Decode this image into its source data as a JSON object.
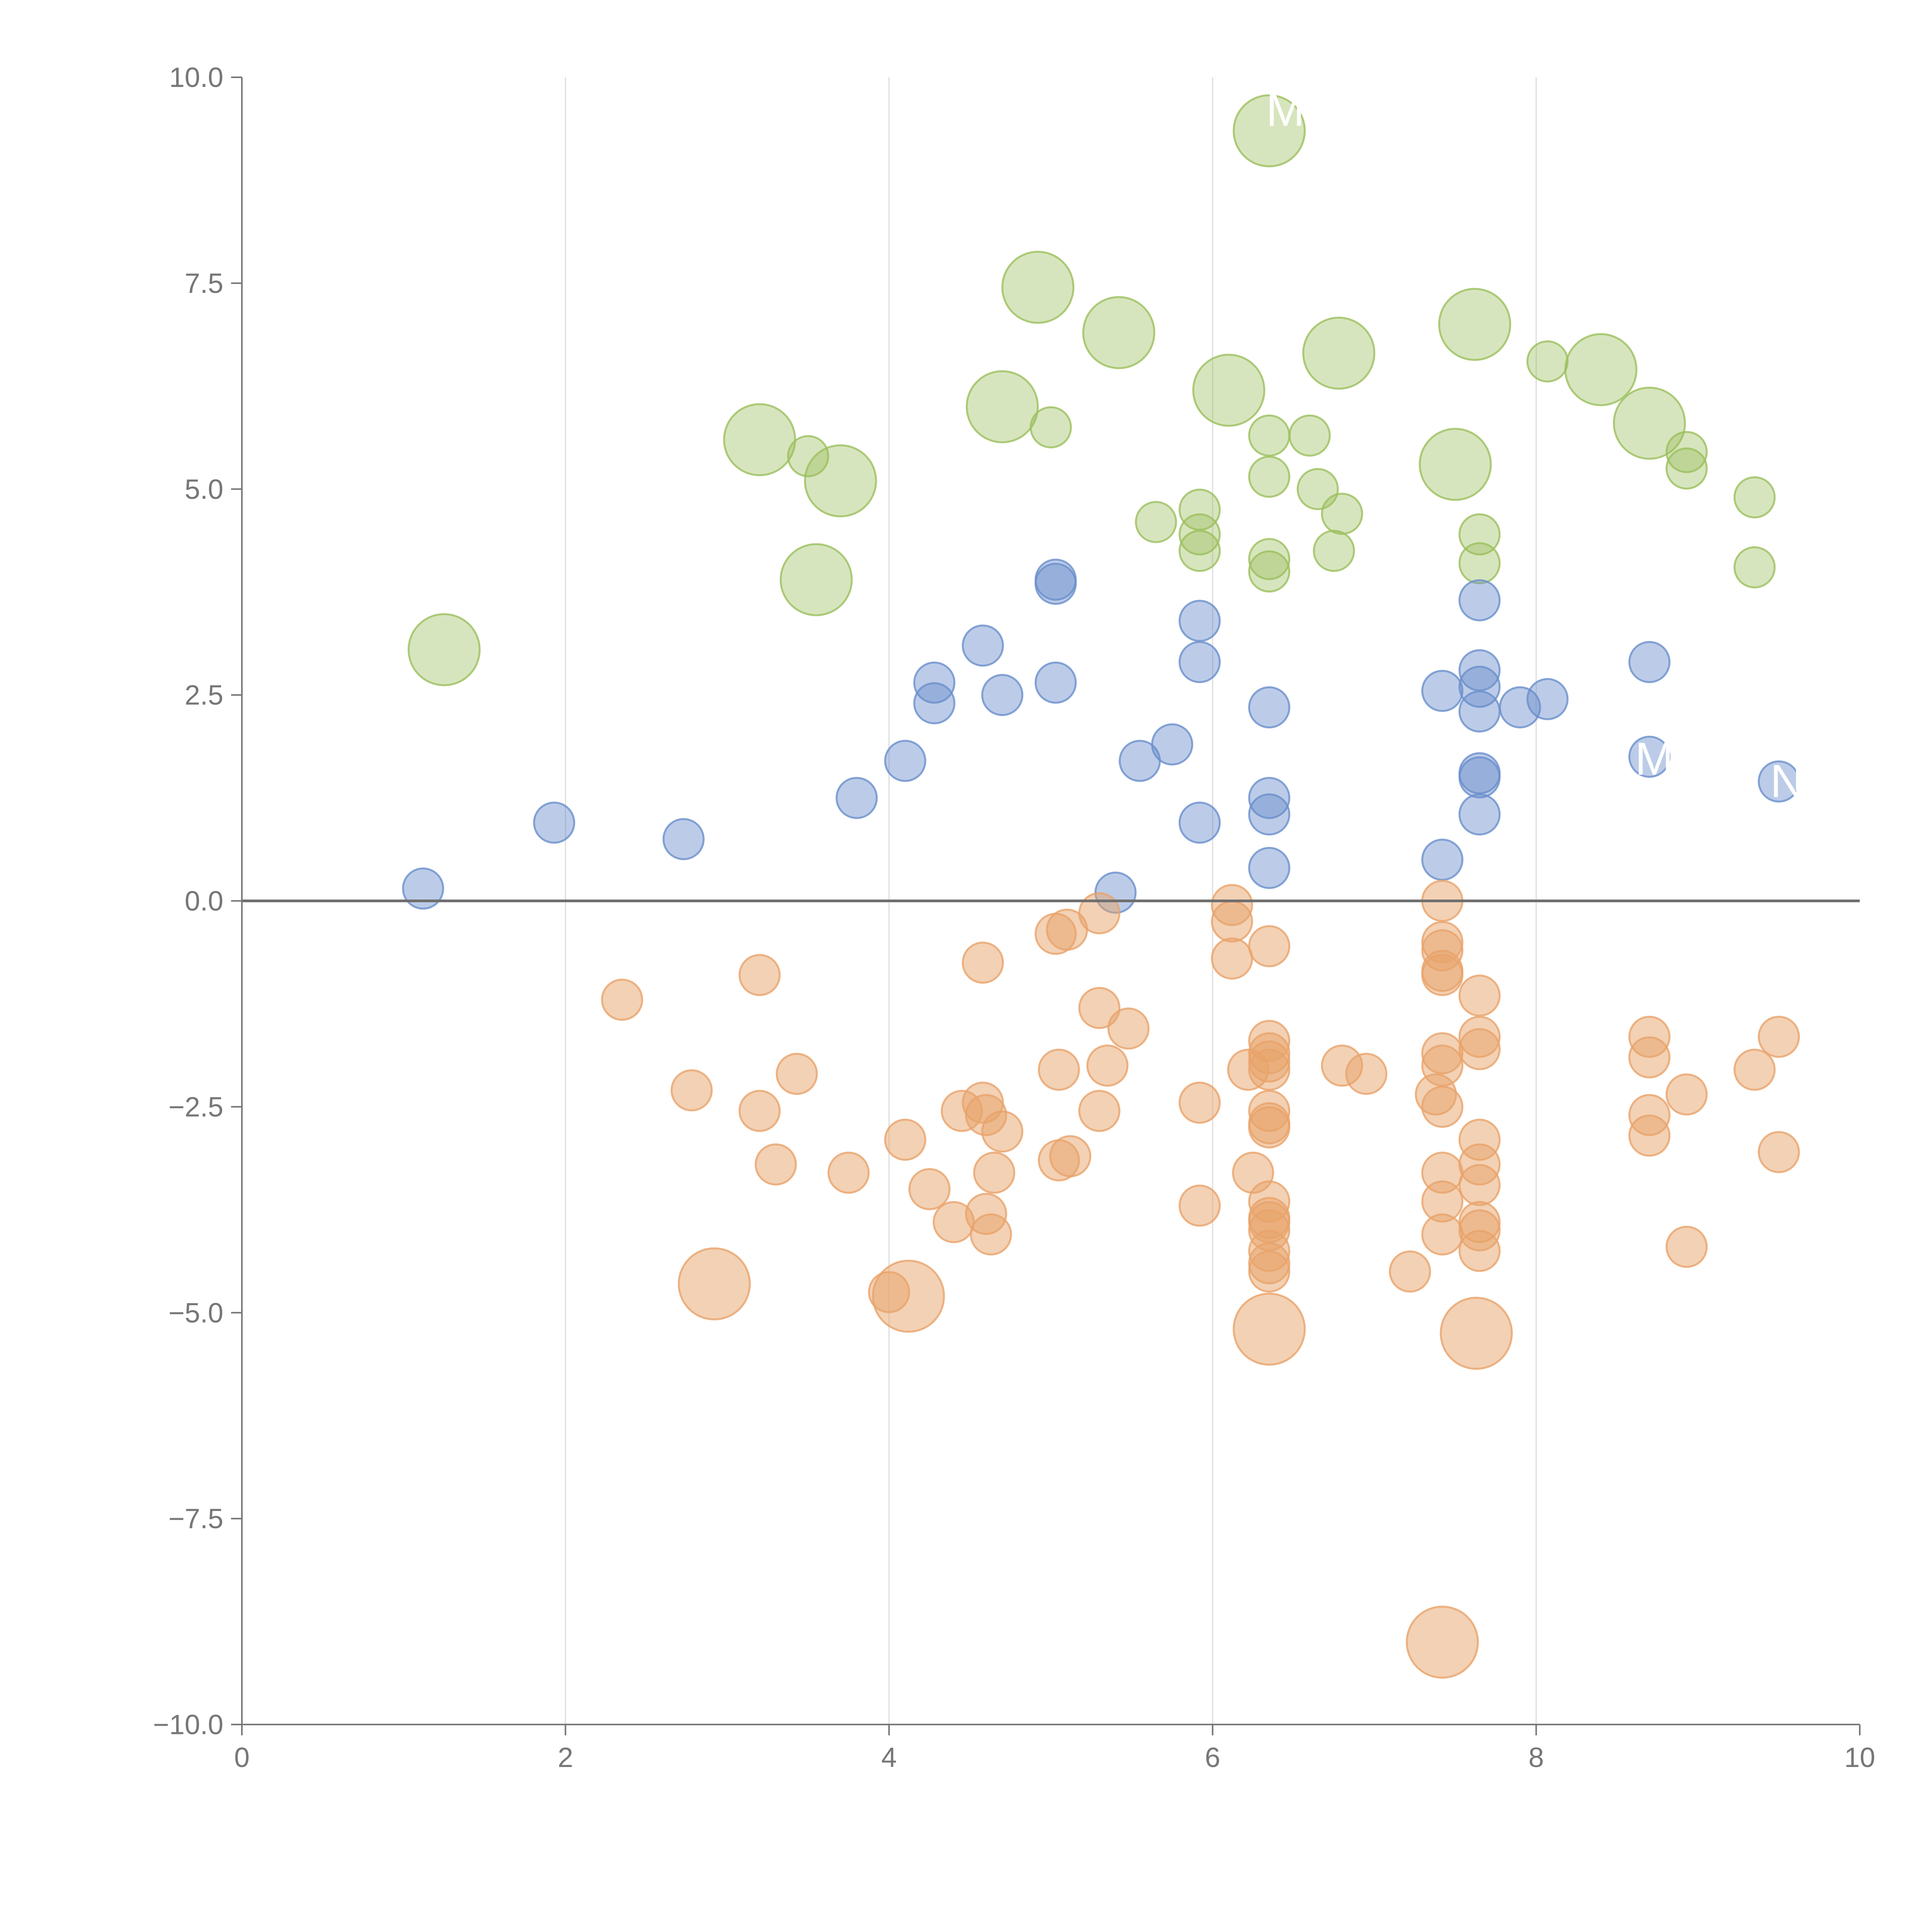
{
  "chart_data": {
    "type": "scatter",
    "variant": "bubble",
    "title": "",
    "xlabel": "",
    "ylabel": "",
    "xlim": [
      0,
      10
    ],
    "ylim": [
      -10,
      10
    ],
    "x_ticks": [
      0,
      2,
      4,
      6,
      8,
      10
    ],
    "y_ticks": [
      -10,
      -7.5,
      -5,
      -2.5,
      0,
      2.5,
      5,
      7.5,
      10
    ],
    "x_tick_labels": [
      "0",
      "2",
      "4",
      "6",
      "8",
      "10"
    ],
    "y_tick_labels": [
      "−10.0",
      "−7.5",
      "−5.0",
      "−2.5",
      "0.0",
      "2.5",
      "5.0",
      "7.5",
      "10.0"
    ],
    "vertical_grid": true,
    "zero_line": true,
    "legend": "none",
    "size_classes": {
      "small": 1,
      "large": 2
    },
    "series": [
      {
        "name": "green",
        "color": "#9bbf5c",
        "fill_opacity": 0.4,
        "points": [
          {
            "x": 1.25,
            "y": 3.05,
            "s": 2
          },
          {
            "x": 3.2,
            "y": 5.6,
            "s": 2
          },
          {
            "x": 3.5,
            "y": 5.4,
            "s": 1
          },
          {
            "x": 3.55,
            "y": 3.9,
            "s": 2
          },
          {
            "x": 3.7,
            "y": 5.1,
            "s": 2
          },
          {
            "x": 4.7,
            "y": 6.0,
            "s": 2
          },
          {
            "x": 4.92,
            "y": 7.45,
            "s": 2
          },
          {
            "x": 5.0,
            "y": 5.75,
            "s": 1
          },
          {
            "x": 5.42,
            "y": 6.9,
            "s": 2
          },
          {
            "x": 5.65,
            "y": 4.6,
            "s": 1
          },
          {
            "x": 5.92,
            "y": 4.75,
            "s": 1
          },
          {
            "x": 5.92,
            "y": 4.45,
            "s": 1
          },
          {
            "x": 5.92,
            "y": 4.25,
            "s": 1
          },
          {
            "x": 6.1,
            "y": 6.2,
            "s": 2
          },
          {
            "x": 6.35,
            "y": 9.35,
            "s": 2
          },
          {
            "x": 6.35,
            "y": 5.65,
            "s": 1
          },
          {
            "x": 6.35,
            "y": 5.15,
            "s": 1
          },
          {
            "x": 6.35,
            "y": 4.15,
            "s": 1
          },
          {
            "x": 6.35,
            "y": 4.0,
            "s": 1
          },
          {
            "x": 6.6,
            "y": 5.65,
            "s": 1
          },
          {
            "x": 6.65,
            "y": 5.0,
            "s": 1
          },
          {
            "x": 6.75,
            "y": 4.25,
            "s": 1
          },
          {
            "x": 6.78,
            "y": 6.65,
            "s": 2
          },
          {
            "x": 6.8,
            "y": 4.7,
            "s": 1
          },
          {
            "x": 7.5,
            "y": 5.3,
            "s": 2
          },
          {
            "x": 7.62,
            "y": 7.0,
            "s": 2
          },
          {
            "x": 7.65,
            "y": 4.45,
            "s": 1
          },
          {
            "x": 7.65,
            "y": 4.1,
            "s": 1
          },
          {
            "x": 8.07,
            "y": 6.55,
            "s": 1
          },
          {
            "x": 8.4,
            "y": 6.45,
            "s": 2
          },
          {
            "x": 8.7,
            "y": 5.8,
            "s": 2
          },
          {
            "x": 8.93,
            "y": 5.45,
            "s": 1
          },
          {
            "x": 8.93,
            "y": 5.25,
            "s": 1
          },
          {
            "x": 9.35,
            "y": 4.9,
            "s": 1
          },
          {
            "x": 9.35,
            "y": 4.05,
            "s": 1
          }
        ]
      },
      {
        "name": "blue",
        "color": "#6a8fcc",
        "fill_opacity": 0.45,
        "points": [
          {
            "x": 1.12,
            "y": 0.15,
            "s": 1
          },
          {
            "x": 1.93,
            "y": 0.95,
            "s": 1
          },
          {
            "x": 2.73,
            "y": 0.75,
            "s": 1
          },
          {
            "x": 3.8,
            "y": 1.25,
            "s": 1
          },
          {
            "x": 4.1,
            "y": 1.7,
            "s": 1
          },
          {
            "x": 4.28,
            "y": 2.65,
            "s": 1
          },
          {
            "x": 4.28,
            "y": 2.4,
            "s": 1
          },
          {
            "x": 4.58,
            "y": 3.1,
            "s": 1
          },
          {
            "x": 4.7,
            "y": 2.5,
            "s": 1
          },
          {
            "x": 5.03,
            "y": 3.9,
            "s": 1
          },
          {
            "x": 5.03,
            "y": 3.85,
            "s": 1
          },
          {
            "x": 5.03,
            "y": 2.65,
            "s": 1
          },
          {
            "x": 5.4,
            "y": 0.1,
            "s": 1
          },
          {
            "x": 5.55,
            "y": 1.7,
            "s": 1
          },
          {
            "x": 5.75,
            "y": 1.9,
            "s": 1
          },
          {
            "x": 5.92,
            "y": 3.4,
            "s": 1
          },
          {
            "x": 5.92,
            "y": 2.9,
            "s": 1
          },
          {
            "x": 5.92,
            "y": 0.95,
            "s": 1
          },
          {
            "x": 6.35,
            "y": 2.35,
            "s": 1
          },
          {
            "x": 6.35,
            "y": 1.25,
            "s": 1
          },
          {
            "x": 6.35,
            "y": 1.05,
            "s": 1
          },
          {
            "x": 6.35,
            "y": 0.4,
            "s": 1
          },
          {
            "x": 7.42,
            "y": 2.55,
            "s": 1
          },
          {
            "x": 7.42,
            "y": 0.5,
            "s": 1
          },
          {
            "x": 7.65,
            "y": 3.65,
            "s": 1
          },
          {
            "x": 7.65,
            "y": 2.8,
            "s": 1
          },
          {
            "x": 7.65,
            "y": 2.6,
            "s": 1
          },
          {
            "x": 7.65,
            "y": 2.3,
            "s": 1
          },
          {
            "x": 7.65,
            "y": 1.55,
            "s": 1
          },
          {
            "x": 7.65,
            "y": 1.5,
            "s": 1
          },
          {
            "x": 7.65,
            "y": 1.05,
            "s": 1
          },
          {
            "x": 7.9,
            "y": 2.35,
            "s": 1
          },
          {
            "x": 8.07,
            "y": 2.45,
            "s": 1
          },
          {
            "x": 8.7,
            "y": 2.9,
            "s": 1
          },
          {
            "x": 8.7,
            "y": 1.75,
            "s": 1
          },
          {
            "x": 9.5,
            "y": 1.45,
            "s": 1
          }
        ]
      },
      {
        "name": "orange",
        "color": "#e8a36a",
        "fill_opacity": 0.5,
        "points": [
          {
            "x": 2.35,
            "y": -1.2,
            "s": 1
          },
          {
            "x": 2.78,
            "y": -2.3,
            "s": 1
          },
          {
            "x": 2.92,
            "y": -4.65,
            "s": 2
          },
          {
            "x": 3.2,
            "y": -0.9,
            "s": 1
          },
          {
            "x": 3.2,
            "y": -2.55,
            "s": 1
          },
          {
            "x": 3.3,
            "y": -3.2,
            "s": 1
          },
          {
            "x": 3.43,
            "y": -2.1,
            "s": 1
          },
          {
            "x": 3.75,
            "y": -3.3,
            "s": 1
          },
          {
            "x": 4.0,
            "y": -4.75,
            "s": 1
          },
          {
            "x": 4.1,
            "y": -2.9,
            "s": 1
          },
          {
            "x": 4.12,
            "y": -4.8,
            "s": 2
          },
          {
            "x": 4.25,
            "y": -3.5,
            "s": 1
          },
          {
            "x": 4.4,
            "y": -3.9,
            "s": 1
          },
          {
            "x": 4.45,
            "y": -2.55,
            "s": 1
          },
          {
            "x": 4.58,
            "y": -0.75,
            "s": 1
          },
          {
            "x": 4.58,
            "y": -2.45,
            "s": 1
          },
          {
            "x": 4.6,
            "y": -2.6,
            "s": 1
          },
          {
            "x": 4.6,
            "y": -3.8,
            "s": 1
          },
          {
            "x": 4.63,
            "y": -4.05,
            "s": 1
          },
          {
            "x": 4.65,
            "y": -3.3,
            "s": 1
          },
          {
            "x": 4.7,
            "y": -2.8,
            "s": 1
          },
          {
            "x": 5.03,
            "y": -0.4,
            "s": 1
          },
          {
            "x": 5.05,
            "y": -2.05,
            "s": 1
          },
          {
            "x": 5.05,
            "y": -3.15,
            "s": 1
          },
          {
            "x": 5.1,
            "y": -0.35,
            "s": 1
          },
          {
            "x": 5.12,
            "y": -3.1,
            "s": 1
          },
          {
            "x": 5.3,
            "y": -0.15,
            "s": 1
          },
          {
            "x": 5.3,
            "y": -2.55,
            "s": 1
          },
          {
            "x": 5.3,
            "y": -1.3,
            "s": 1
          },
          {
            "x": 5.35,
            "y": -2.0,
            "s": 1
          },
          {
            "x": 5.48,
            "y": -1.55,
            "s": 1
          },
          {
            "x": 5.92,
            "y": -2.45,
            "s": 1
          },
          {
            "x": 5.92,
            "y": -3.7,
            "s": 1
          },
          {
            "x": 6.12,
            "y": -0.05,
            "s": 1
          },
          {
            "x": 6.12,
            "y": -0.25,
            "s": 1
          },
          {
            "x": 6.12,
            "y": -0.7,
            "s": 1
          },
          {
            "x": 6.22,
            "y": -2.05,
            "s": 1
          },
          {
            "x": 6.25,
            "y": -3.3,
            "s": 1
          },
          {
            "x": 6.35,
            "y": -0.55,
            "s": 1
          },
          {
            "x": 6.35,
            "y": -1.7,
            "s": 1
          },
          {
            "x": 6.35,
            "y": -1.85,
            "s": 1
          },
          {
            "x": 6.35,
            "y": -1.95,
            "s": 1
          },
          {
            "x": 6.35,
            "y": -2.05,
            "s": 1
          },
          {
            "x": 6.35,
            "y": -2.55,
            "s": 1
          },
          {
            "x": 6.35,
            "y": -2.7,
            "s": 1
          },
          {
            "x": 6.35,
            "y": -2.75,
            "s": 1
          },
          {
            "x": 6.35,
            "y": -3.65,
            "s": 1
          },
          {
            "x": 6.35,
            "y": -3.85,
            "s": 1
          },
          {
            "x": 6.35,
            "y": -3.9,
            "s": 1
          },
          {
            "x": 6.35,
            "y": -4.0,
            "s": 1
          },
          {
            "x": 6.35,
            "y": -4.25,
            "s": 1
          },
          {
            "x": 6.35,
            "y": -4.4,
            "s": 1
          },
          {
            "x": 6.35,
            "y": -4.5,
            "s": 1
          },
          {
            "x": 6.35,
            "y": -5.2,
            "s": 2
          },
          {
            "x": 6.8,
            "y": -2.0,
            "s": 1
          },
          {
            "x": 6.95,
            "y": -2.1,
            "s": 1
          },
          {
            "x": 7.22,
            "y": -4.5,
            "s": 1
          },
          {
            "x": 7.38,
            "y": -2.35,
            "s": 1
          },
          {
            "x": 7.42,
            "y": 0.0,
            "s": 1
          },
          {
            "x": 7.42,
            "y": -0.5,
            "s": 1
          },
          {
            "x": 7.42,
            "y": -0.6,
            "s": 1
          },
          {
            "x": 7.42,
            "y": -0.85,
            "s": 1
          },
          {
            "x": 7.42,
            "y": -0.9,
            "s": 1
          },
          {
            "x": 7.42,
            "y": -1.85,
            "s": 1
          },
          {
            "x": 7.42,
            "y": -2.0,
            "s": 1
          },
          {
            "x": 7.42,
            "y": -2.5,
            "s": 1
          },
          {
            "x": 7.42,
            "y": -3.3,
            "s": 1
          },
          {
            "x": 7.42,
            "y": -3.65,
            "s": 1
          },
          {
            "x": 7.42,
            "y": -4.05,
            "s": 1
          },
          {
            "x": 7.42,
            "y": -9.0,
            "s": 2
          },
          {
            "x": 7.65,
            "y": -1.15,
            "s": 1
          },
          {
            "x": 7.65,
            "y": -1.65,
            "s": 1
          },
          {
            "x": 7.65,
            "y": -1.8,
            "s": 1
          },
          {
            "x": 7.65,
            "y": -2.9,
            "s": 1
          },
          {
            "x": 7.65,
            "y": -3.2,
            "s": 1
          },
          {
            "x": 7.65,
            "y": -3.45,
            "s": 1
          },
          {
            "x": 7.65,
            "y": -3.9,
            "s": 1
          },
          {
            "x": 7.65,
            "y": -4.0,
            "s": 1
          },
          {
            "x": 7.65,
            "y": -4.25,
            "s": 1
          },
          {
            "x": 7.63,
            "y": -5.25,
            "s": 2
          },
          {
            "x": 8.7,
            "y": -1.65,
            "s": 1
          },
          {
            "x": 8.7,
            "y": -1.9,
            "s": 1
          },
          {
            "x": 8.7,
            "y": -2.6,
            "s": 1
          },
          {
            "x": 8.7,
            "y": -2.85,
            "s": 1
          },
          {
            "x": 8.93,
            "y": -2.35,
            "s": 1
          },
          {
            "x": 8.93,
            "y": -4.2,
            "s": 1
          },
          {
            "x": 9.35,
            "y": -2.05,
            "s": 1
          },
          {
            "x": 9.5,
            "y": -1.65,
            "s": 1
          },
          {
            "x": 9.5,
            "y": -3.05,
            "s": 1
          }
        ]
      }
    ],
    "annotations": [
      {
        "text": "M",
        "x": 6.45,
        "y": 9.6
      },
      {
        "text": "M",
        "x": 8.73,
        "y": 1.72
      },
      {
        "text": "N",
        "x": 9.55,
        "y": 1.45
      }
    ]
  }
}
